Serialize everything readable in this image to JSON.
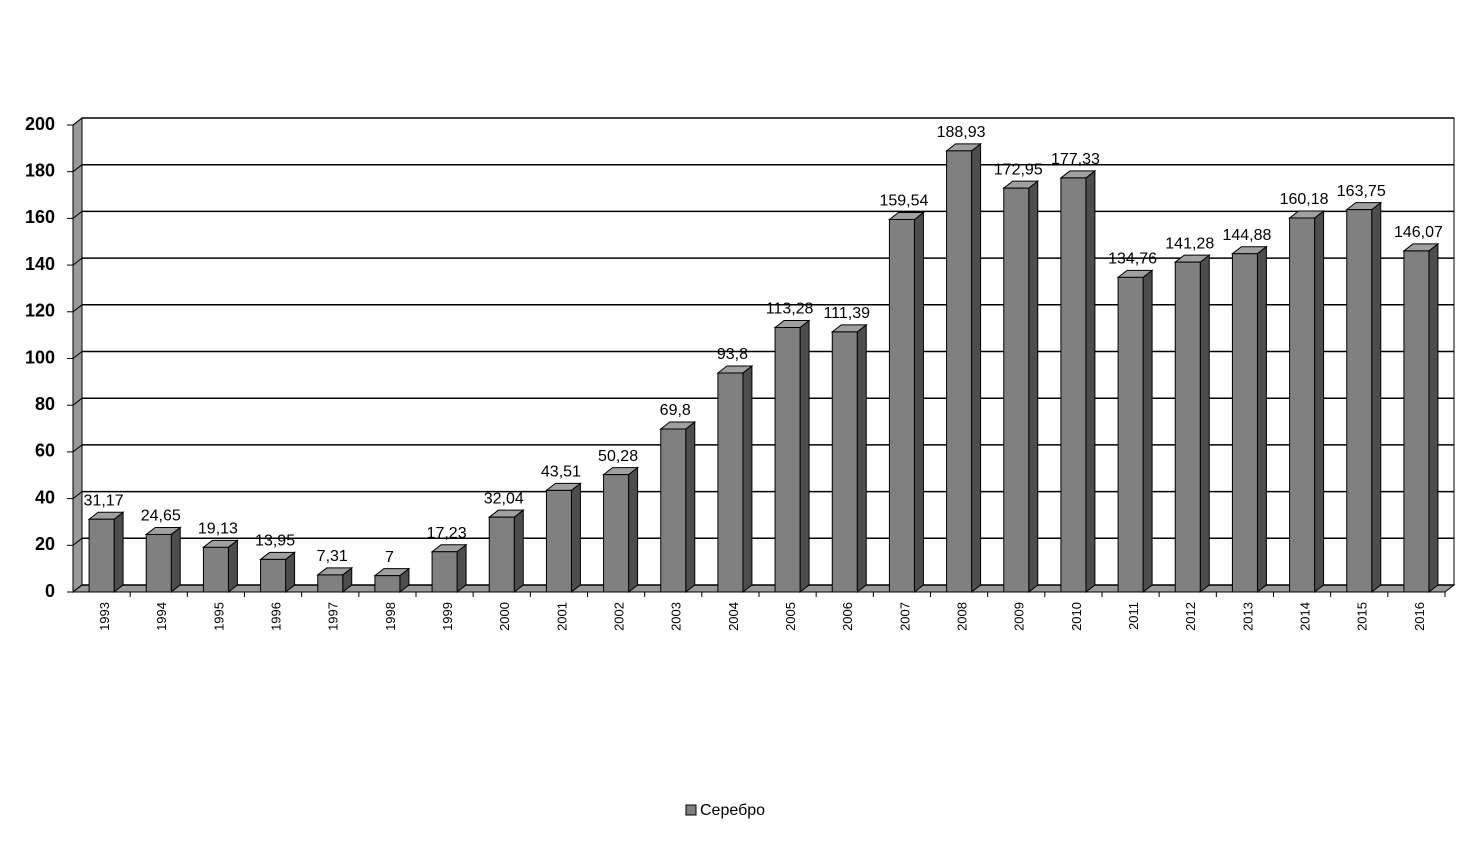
{
  "chart_data": {
    "type": "bar3d",
    "categories": [
      "1993",
      "1994",
      "1995",
      "1996",
      "1997",
      "1998",
      "1999",
      "2000",
      "2001",
      "2002",
      "2003",
      "2004",
      "2005",
      "2006",
      "2007",
      "2008",
      "2009",
      "2010",
      "2011",
      "2012",
      "2013",
      "2014",
      "2015",
      "2016"
    ],
    "series": [
      {
        "name": "Серебро",
        "color": "#808080",
        "values": [
          31.17,
          24.65,
          19.13,
          13.95,
          7.31,
          7,
          17.23,
          32.04,
          43.51,
          50.28,
          69.8,
          93.8,
          113.28,
          111.39,
          159.54,
          188.93,
          172.95,
          177.33,
          134.76,
          141.28,
          144.88,
          160.18,
          163.75,
          146.07
        ],
        "value_labels": [
          "31,17",
          "24,65",
          "19,13",
          "13,95",
          "7,31",
          "7",
          "17,23",
          "32,04",
          "43,51",
          "50,28",
          "69,8",
          "93,8",
          "113,28",
          "111,39",
          "159,54",
          "188,93",
          "172,95",
          "177,33",
          "134,76",
          "141,28",
          "144,88",
          "160,18",
          "163,75",
          "146,07"
        ]
      }
    ],
    "ylim": [
      0,
      200
    ],
    "yticks": [
      0,
      20,
      40,
      60,
      80,
      100,
      120,
      140,
      160,
      180,
      200
    ],
    "grid": true,
    "legend": "bottom"
  }
}
